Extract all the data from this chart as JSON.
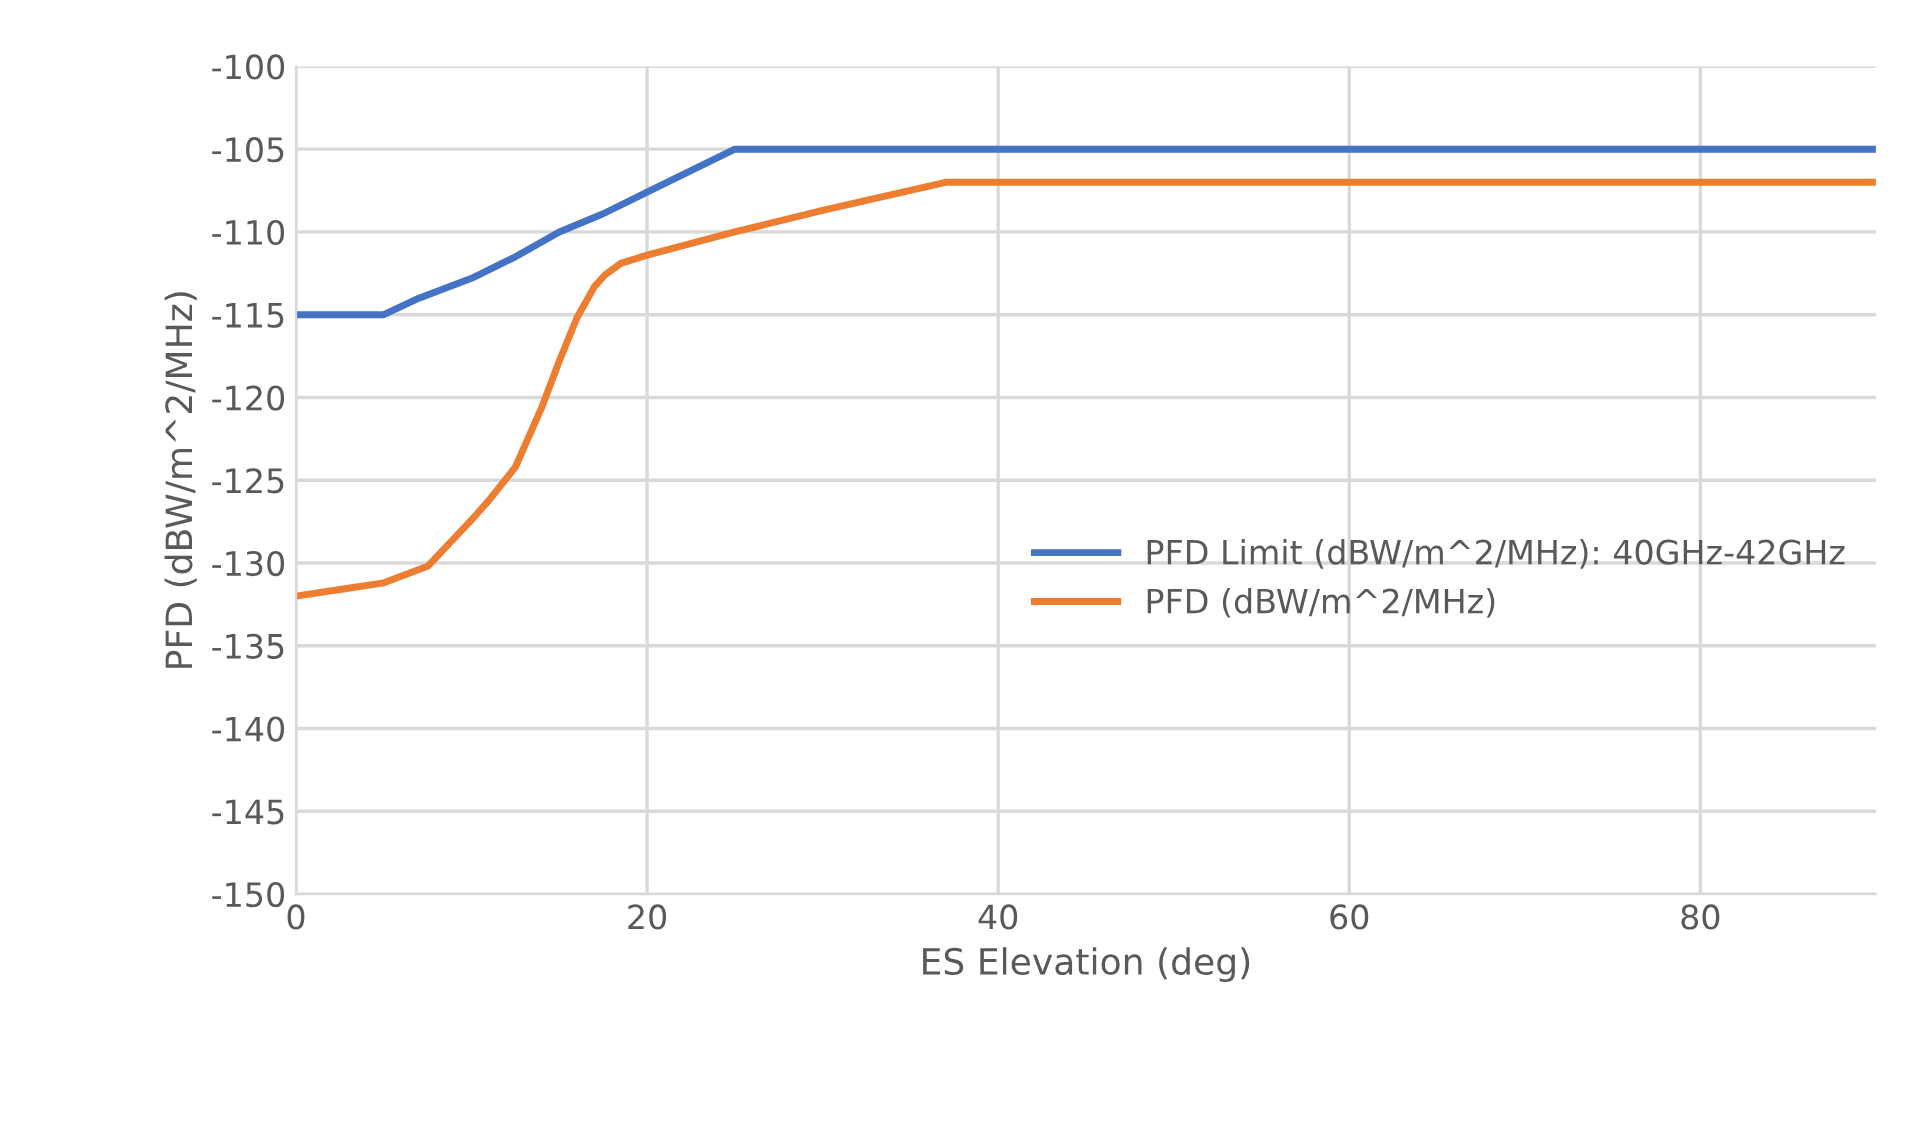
{
  "chart_data": {
    "type": "line",
    "xlabel": "ES Elevation (deg)",
    "ylabel": "PFD (dBW/m^2/MHz)",
    "xlim": [
      0,
      90
    ],
    "xticks": [
      0,
      20,
      40,
      60,
      80
    ],
    "ylim": [
      -150,
      -100
    ],
    "yticks": [
      -150,
      -145,
      -140,
      -135,
      -130,
      -125,
      -120,
      -115,
      -110,
      -105,
      -100
    ],
    "grid": true,
    "legend": "right",
    "marker": "none",
    "line_style": "solid",
    "series": [
      {
        "name": "PFD Limit (dBW/m^2/MHz): 40GHz-42GHz",
        "color": "#4472c4",
        "x": [
          0,
          5,
          7,
          10,
          12.5,
          15,
          17.5,
          20,
          22.5,
          25,
          90
        ],
        "values": [
          -115,
          -115,
          -114,
          -112.8,
          -111.5,
          -110,
          -108.9,
          -107.6,
          -106.3,
          -105,
          -105
        ]
      },
      {
        "name": "PFD (dBW/m^2/MHz)",
        "color": "#ed7d31",
        "x": [
          0,
          2.5,
          5,
          7.5,
          10,
          11,
          12.5,
          14,
          15,
          16,
          17,
          17.6,
          18.5,
          20,
          25,
          30,
          37,
          90
        ],
        "values": [
          -132,
          -131.6,
          -131.2,
          -130.2,
          -127.4,
          -126.2,
          -124.2,
          -120.6,
          -117.8,
          -115.2,
          -113.3,
          -112.6,
          -111.9,
          -111.4,
          -110,
          -108.7,
          -107,
          -107
        ]
      }
    ]
  }
}
